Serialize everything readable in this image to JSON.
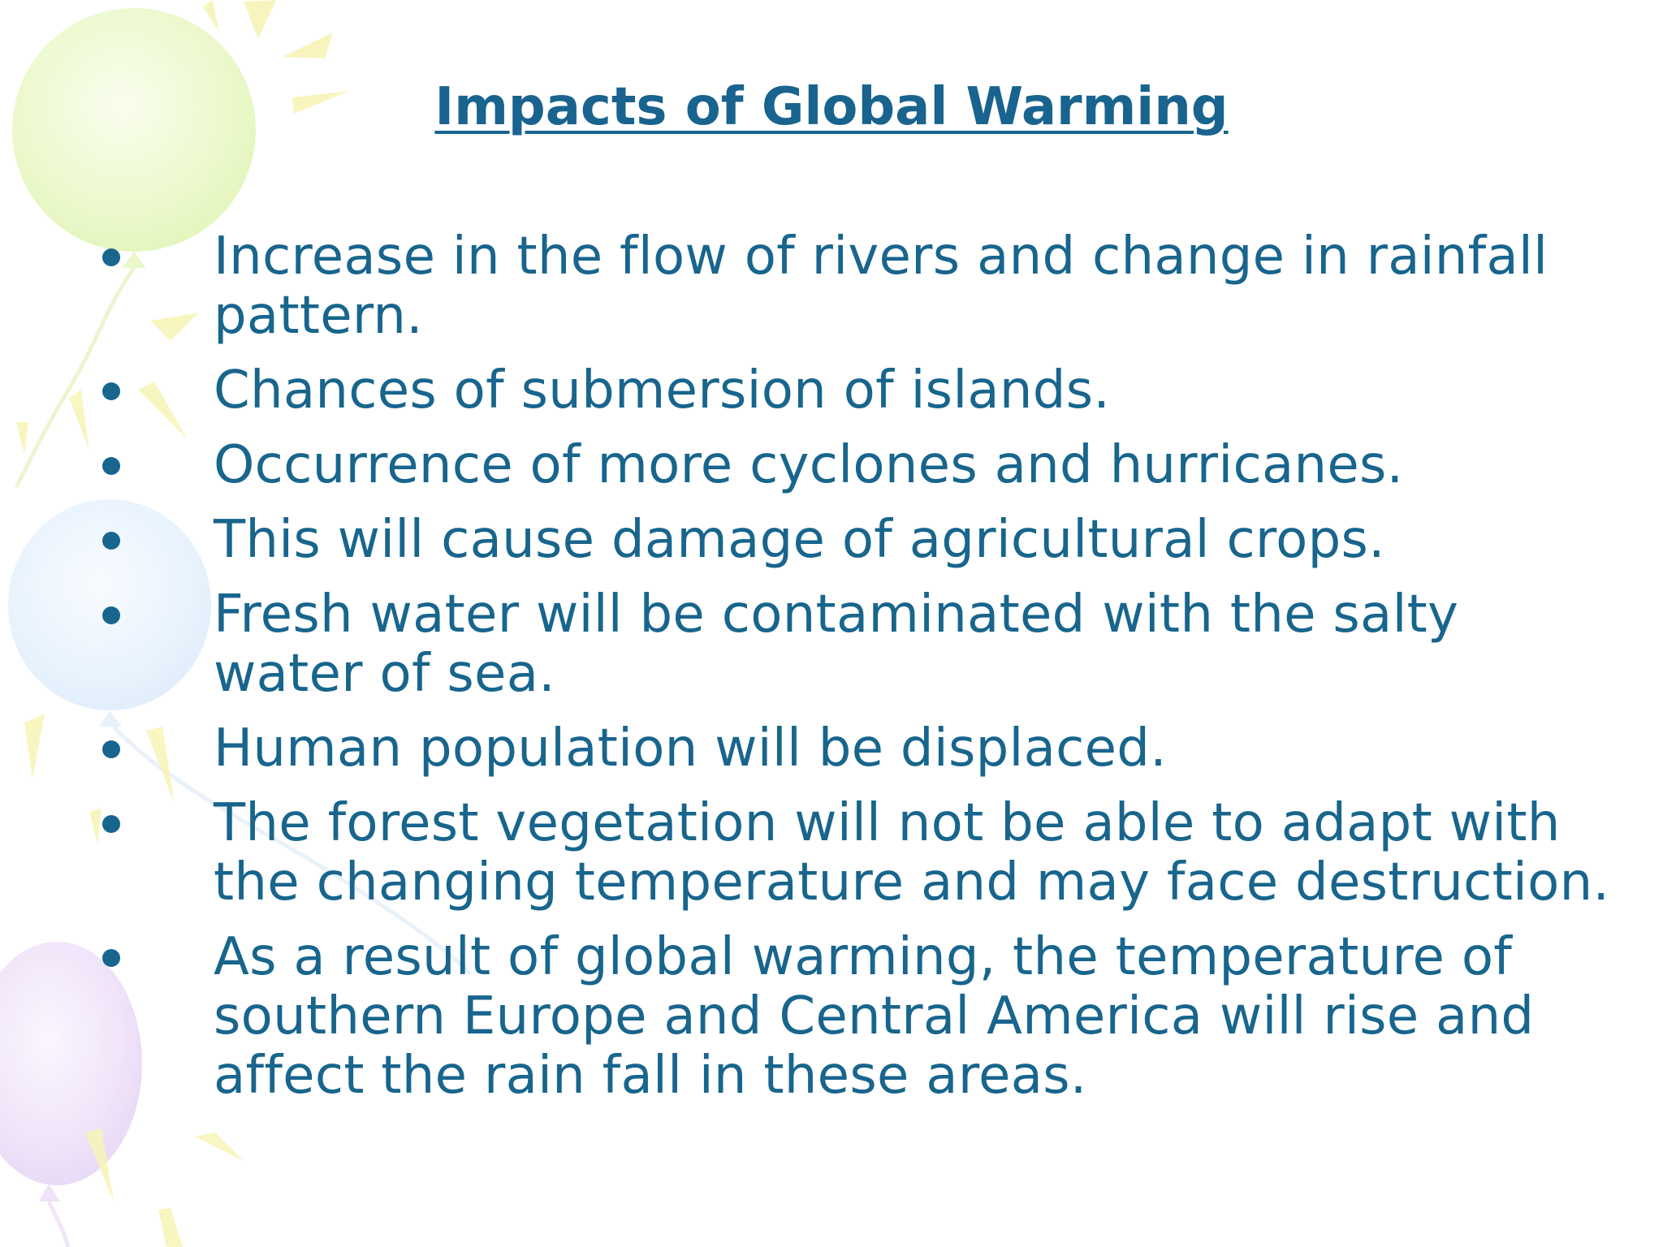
{
  "slide": {
    "title": "Impacts of Global Warming",
    "bullets": [
      "Increase in the flow of rivers and change in rainfall pattern.",
      "Chances of submersion of islands.",
      "Occurrence of more cyclones and hurricanes.",
      "This will cause damage of agricultural crops.",
      "Fresh water will be contaminated with the salty water of sea.",
      "Human population will be displaced.",
      "The forest vegetation will not be able to adapt with the changing temperature and may face destruction.",
      "As a result of global warming, the temperature of southern Europe and Central America will rise and affect the rain fall in these areas."
    ]
  },
  "colors": {
    "text": "#18658D",
    "title": "#19638F",
    "balloon_green": "#E9F8C5",
    "balloon_blue": "#E6F2FD",
    "balloon_purple": "#EEE0F8",
    "sunburst_yellow": "#F7F5B6"
  }
}
